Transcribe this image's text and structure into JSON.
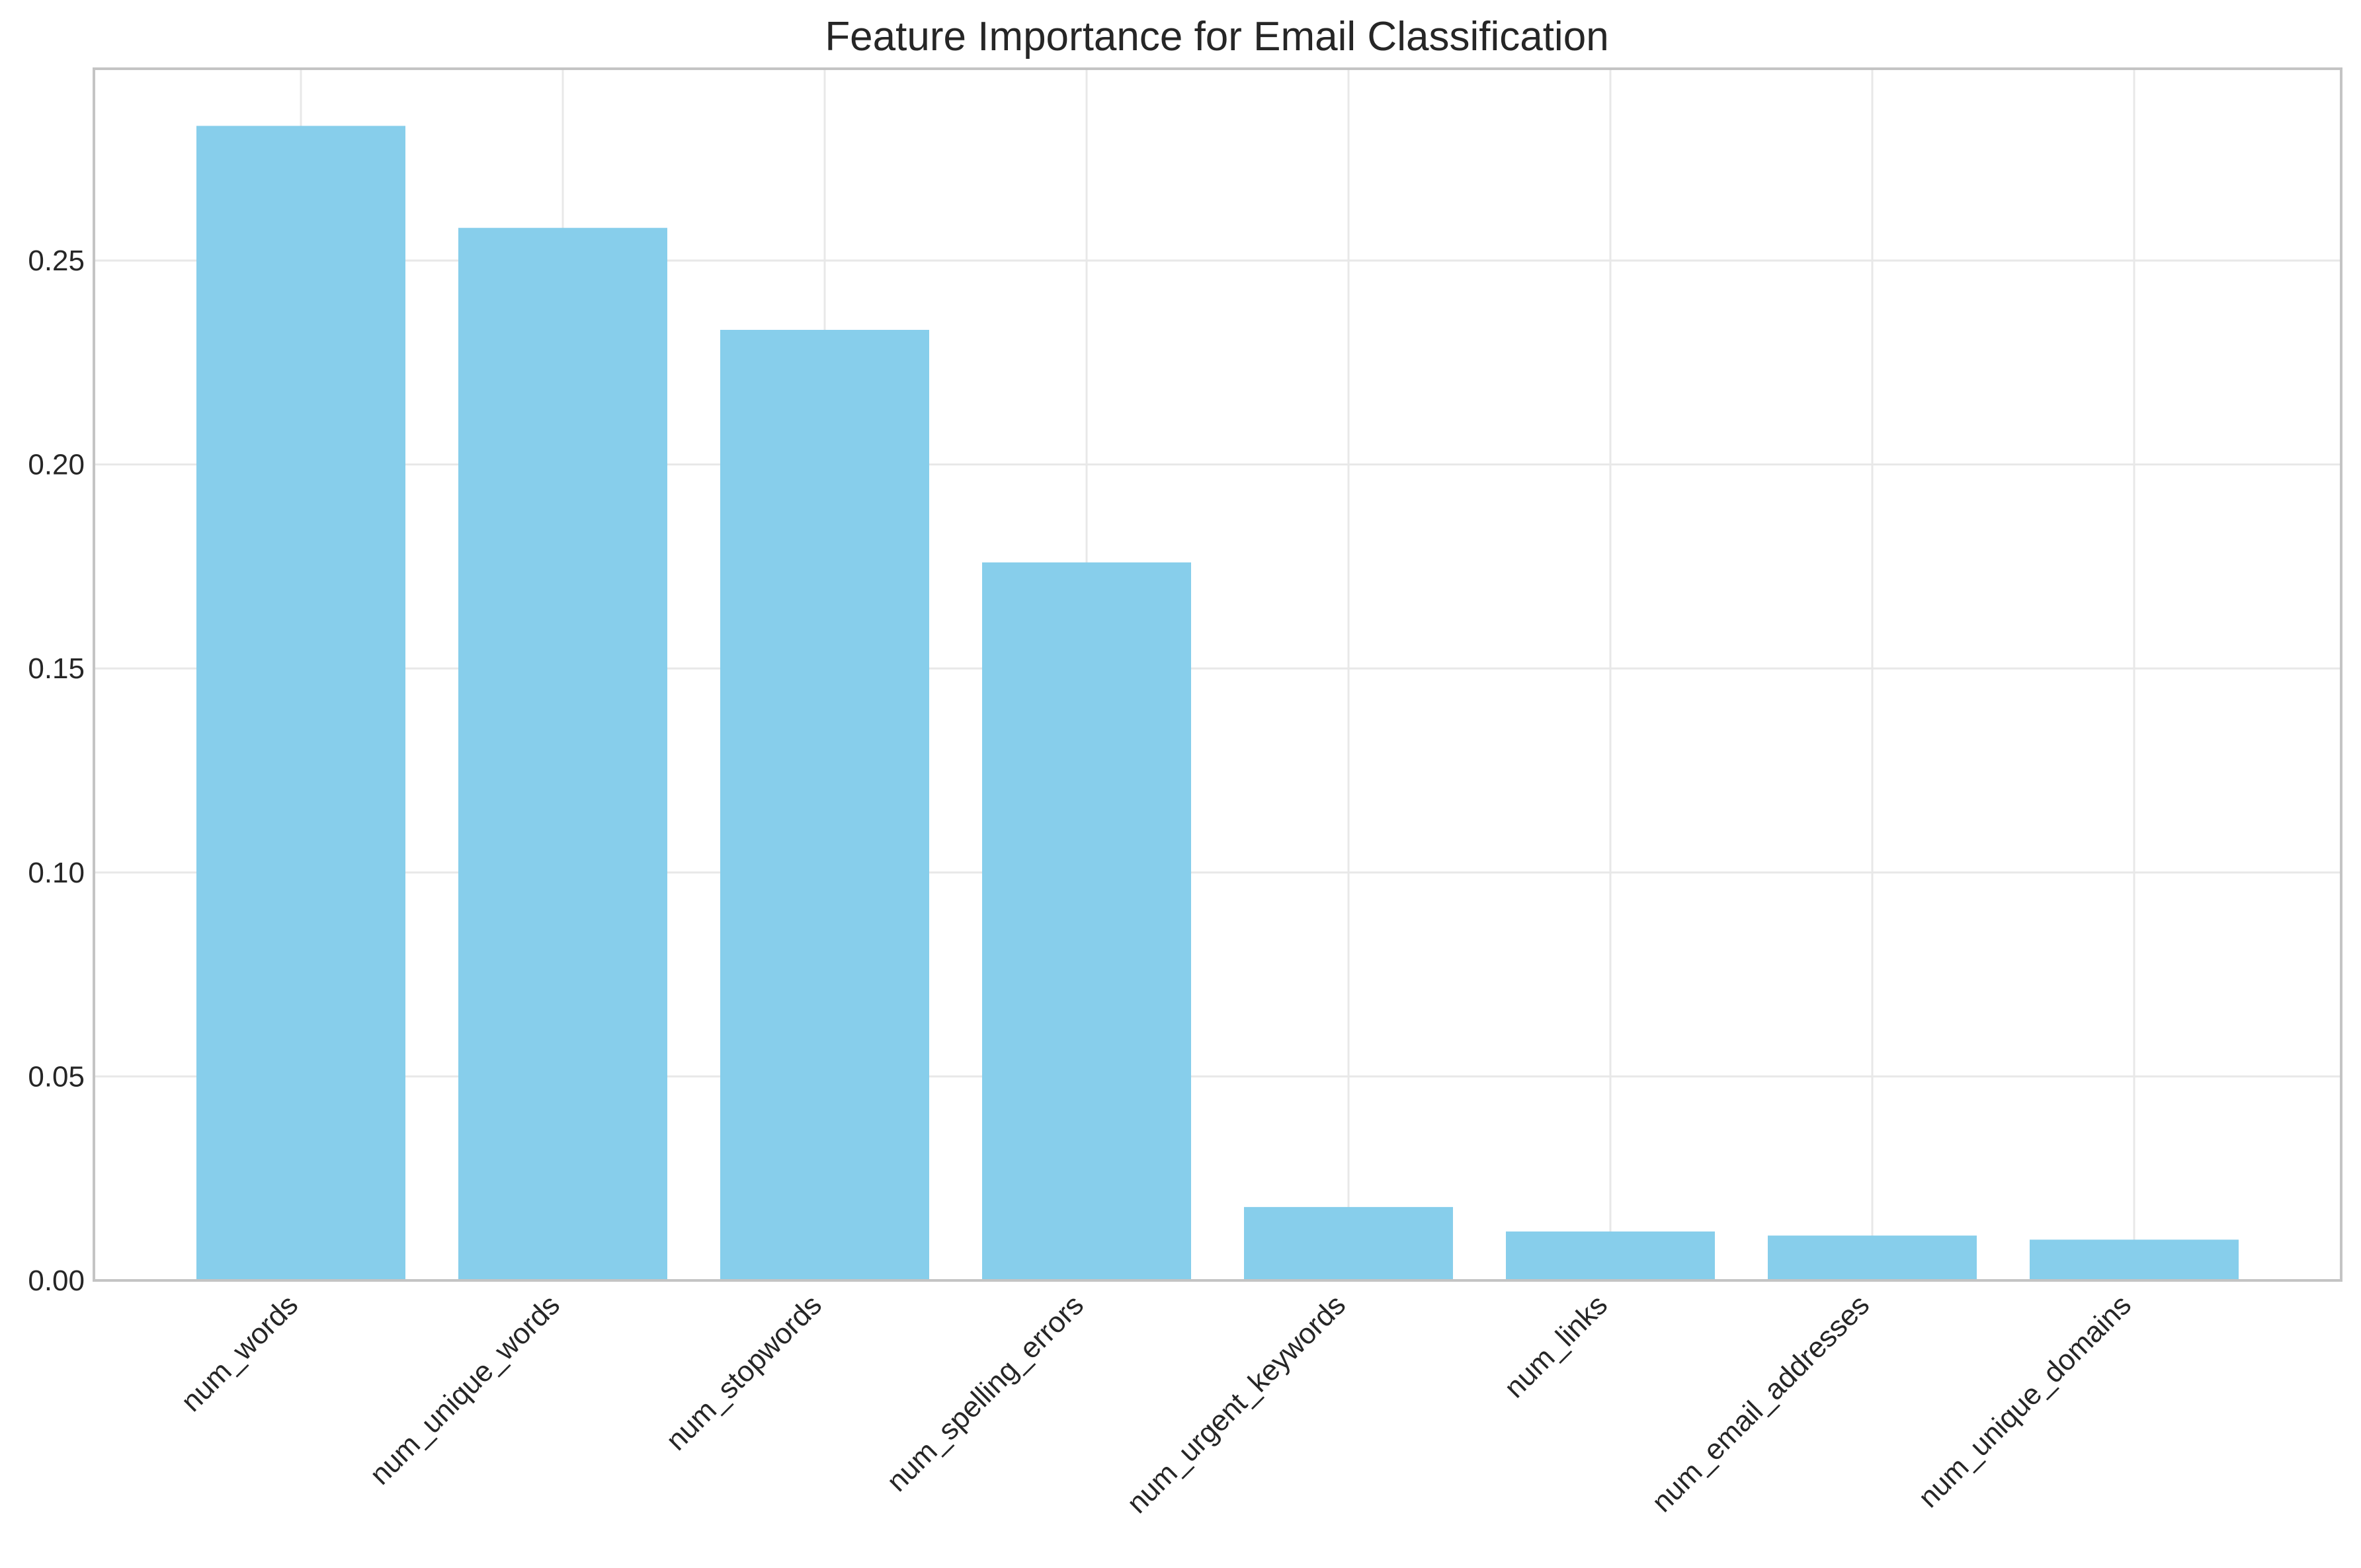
{
  "chart_data": {
    "type": "bar",
    "title": "Feature Importance for Email Classification",
    "xlabel": "",
    "ylabel": "",
    "categories": [
      "num_words",
      "num_unique_words",
      "num_stopwords",
      "num_spelling_errors",
      "num_urgent_keywords",
      "num_links",
      "num_email_addresses",
      "num_unique_domains"
    ],
    "values": [
      0.283,
      0.258,
      0.233,
      0.176,
      0.018,
      0.012,
      0.011,
      0.01
    ],
    "ylim": [
      0,
      0.297
    ],
    "yticks": [
      0.0,
      0.05,
      0.1,
      0.15,
      0.2,
      0.25
    ],
    "ytick_labels": [
      "0.00",
      "0.05",
      "0.10",
      "0.15",
      "0.20",
      "0.25"
    ],
    "bar_color": "#87ceeb",
    "grid": true,
    "x_tick_rotation": "45° right-aligned",
    "legend": "none"
  }
}
